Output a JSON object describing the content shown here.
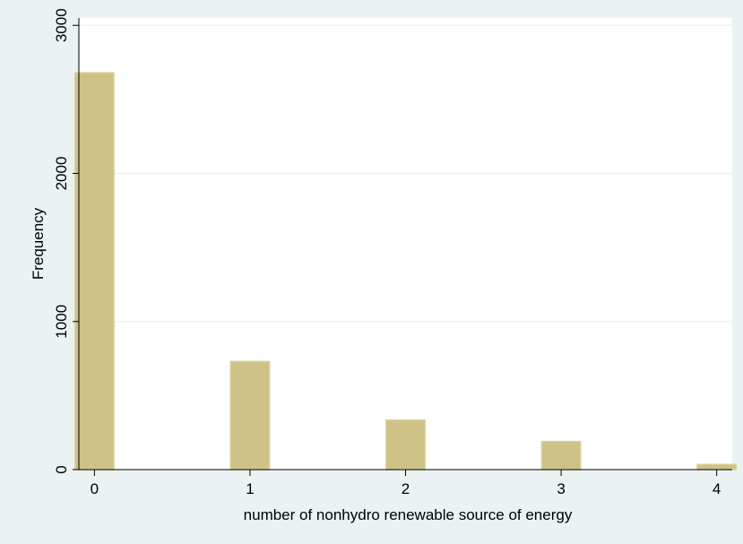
{
  "chart_data": {
    "type": "bar",
    "title": "",
    "xlabel": "number of nonhydro renewable source of energy",
    "ylabel": "Frequency",
    "x": [
      0,
      1,
      2,
      3,
      4
    ],
    "values": [
      2680,
      730,
      335,
      190,
      35
    ],
    "x_ticks": [
      "0",
      "1",
      "2",
      "3",
      "4"
    ],
    "y_ticks": [
      "0",
      "1000",
      "2000",
      "3000"
    ],
    "xlim": [
      -0.1,
      4.1
    ],
    "ylim": [
      0,
      3050
    ],
    "grid": "horizontal",
    "colors": {
      "outer_background": "#eaf2f3",
      "plot_background": "#ffffff",
      "bar_fill": "#cfc287",
      "bar_edge": "#d9d099",
      "gridline": "#eaf2f3",
      "axis": "#000000"
    }
  }
}
